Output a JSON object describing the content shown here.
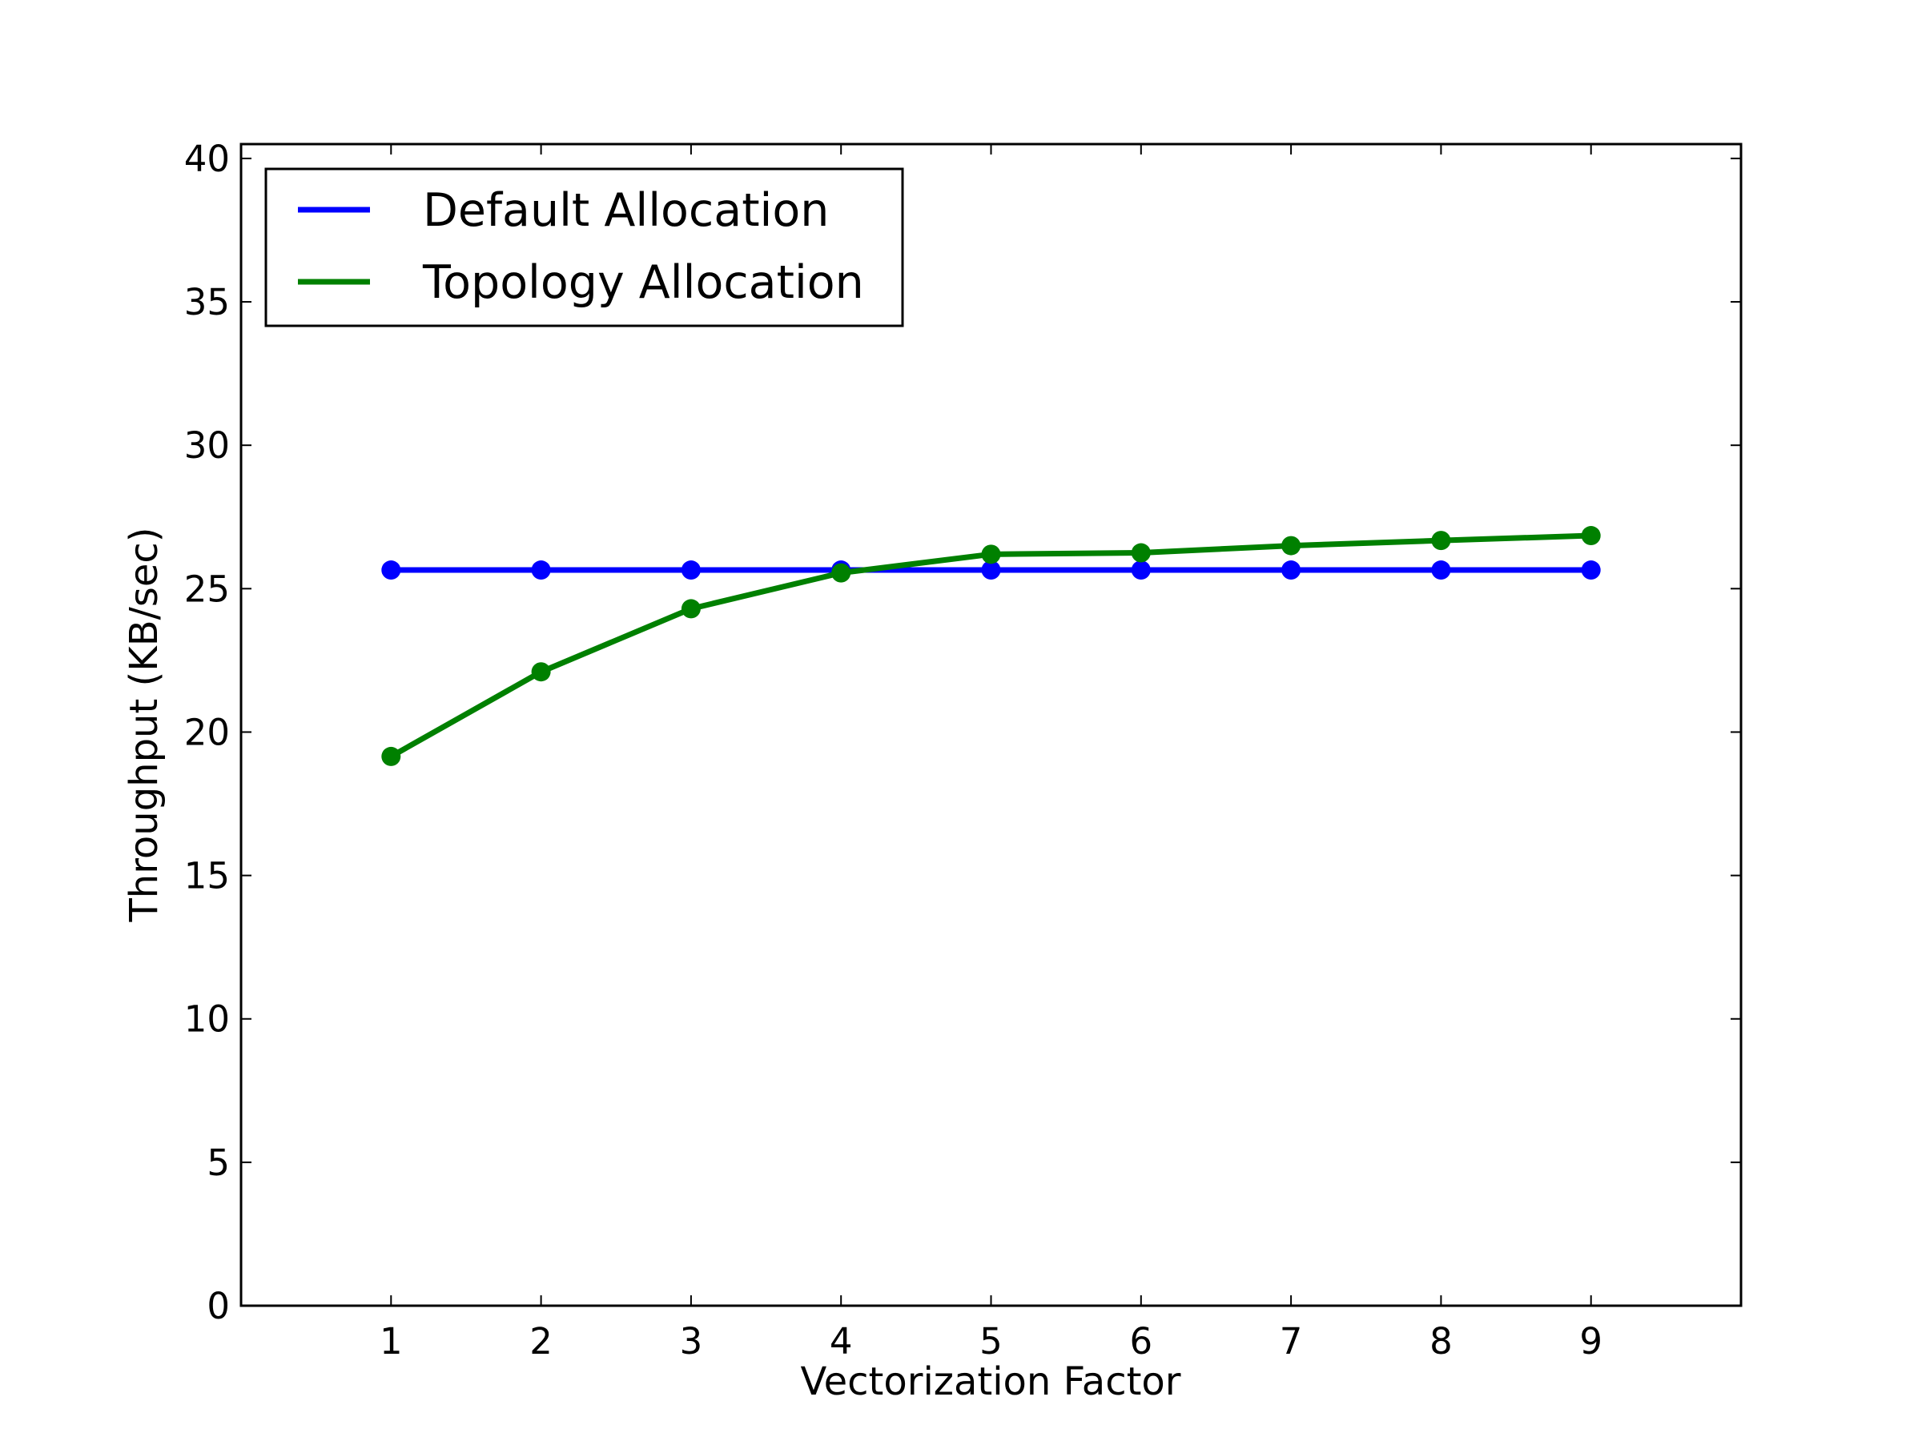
{
  "chart_data": {
    "type": "line",
    "xlabel": "Vectorization Factor",
    "ylabel": "Throughput (KB/sec)",
    "xlim": [
      0,
      10
    ],
    "ylim": [
      0,
      40.5
    ],
    "x_ticks": [
      1,
      2,
      3,
      4,
      5,
      6,
      7,
      8,
      9
    ],
    "y_ticks": [
      0,
      5,
      10,
      15,
      20,
      25,
      30,
      35,
      40
    ],
    "grid": false,
    "legend_position": "top-left",
    "x": [
      1,
      2,
      3,
      4,
      5,
      6,
      7,
      8,
      9
    ],
    "series": [
      {
        "name": "Default Allocation",
        "color": "#0000ff",
        "values": [
          25.65,
          25.65,
          25.65,
          25.65,
          25.65,
          25.65,
          25.65,
          25.65,
          25.65
        ]
      },
      {
        "name": "Topology Allocation",
        "color": "#008000",
        "values": [
          19.15,
          22.1,
          24.3,
          25.55,
          26.2,
          26.25,
          26.5,
          26.68,
          26.85
        ]
      }
    ]
  }
}
